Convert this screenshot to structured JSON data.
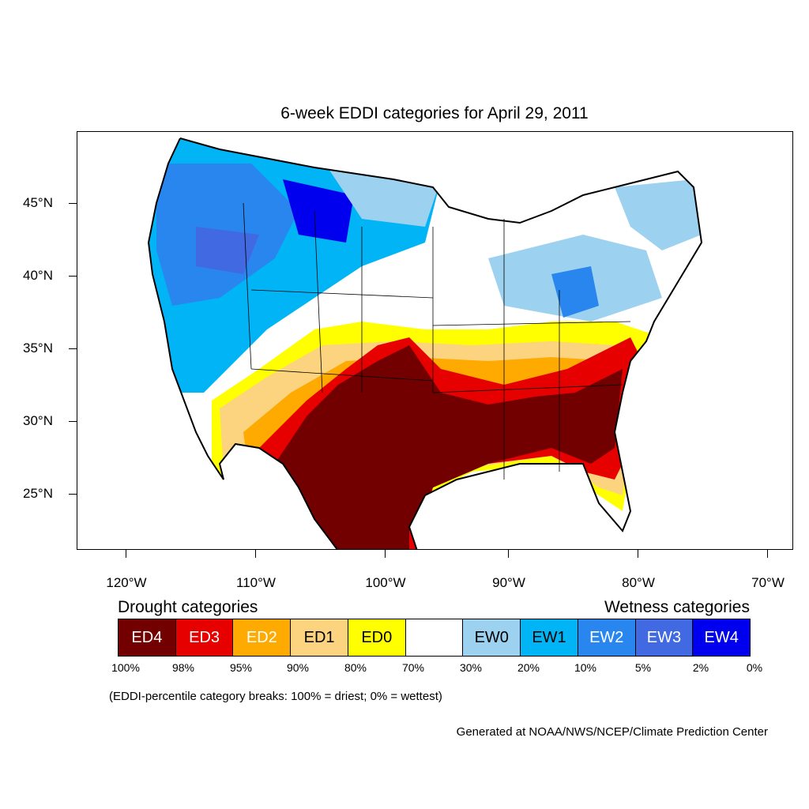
{
  "title": "6-week EDDI categories for April 29, 2011",
  "axes": {
    "lat_labels": [
      "45°N",
      "40°N",
      "35°N",
      "30°N",
      "25°N"
    ],
    "lon_labels": [
      "120°W",
      "110°W",
      "100°W",
      "90°W",
      "80°W",
      "70°W"
    ]
  },
  "legend": {
    "drought_title": "Drought categories",
    "wetness_title": "Wetness categories",
    "categories": [
      {
        "label": "ED4",
        "color": "#730000",
        "text_color": "#ffffff"
      },
      {
        "label": "ED3",
        "color": "#e60000",
        "text_color": "#ffffff"
      },
      {
        "label": "ED2",
        "color": "#ffaa00",
        "text_color": "#ffffff"
      },
      {
        "label": "ED1",
        "color": "#fcd37f",
        "text_color": "#000000"
      },
      {
        "label": "ED0",
        "color": "#ffff00",
        "text_color": "#000000"
      },
      {
        "label": "",
        "color": "#ffffff",
        "text_color": "#000000"
      },
      {
        "label": "EW0",
        "color": "#9dd1f0",
        "text_color": "#000000"
      },
      {
        "label": "EW1",
        "color": "#00b4f5",
        "text_color": "#000000"
      },
      {
        "label": "EW2",
        "color": "#2a86ef",
        "text_color": "#ffffff"
      },
      {
        "label": "EW3",
        "color": "#4169e1",
        "text_color": "#ffffff"
      },
      {
        "label": "EW4",
        "color": "#0000ee",
        "text_color": "#ffffff"
      }
    ],
    "breaks": [
      "100%",
      "98%",
      "95%",
      "90%",
      "80%",
      "70%",
      "30%",
      "20%",
      "10%",
      "5%",
      "2%",
      "0%"
    ]
  },
  "note": "(EDDI-percentile category breaks: 100% = driest; 0% = wettest)",
  "credit": "Generated at NOAA/NWS/NCEP/Climate Prediction Center"
}
